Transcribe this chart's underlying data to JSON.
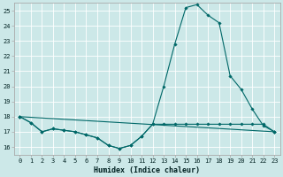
{
  "xlabel": "Humidex (Indice chaleur)",
  "xlim": [
    -0.5,
    23.5
  ],
  "ylim": [
    15.5,
    25.5
  ],
  "yticks": [
    16,
    17,
    18,
    19,
    20,
    21,
    22,
    23,
    24,
    25
  ],
  "xticks": [
    0,
    1,
    2,
    3,
    4,
    5,
    6,
    7,
    8,
    9,
    10,
    11,
    12,
    13,
    14,
    15,
    16,
    17,
    18,
    19,
    20,
    21,
    22,
    23
  ],
  "bg_color": "#cce8e8",
  "grid_color": "#ffffff",
  "line_color": "#006868",
  "line1_x": [
    0,
    1,
    2,
    3,
    4,
    5,
    6,
    7,
    8,
    9,
    10,
    11,
    12,
    13,
    14,
    15,
    16,
    17,
    18,
    19,
    20,
    21,
    22,
    23
  ],
  "line1_y": [
    18.0,
    17.6,
    17.0,
    17.2,
    17.1,
    17.0,
    16.8,
    16.6,
    16.1,
    15.9,
    16.1,
    16.7,
    17.5,
    17.5,
    17.5,
    17.5,
    17.5,
    17.5,
    17.5,
    17.5,
    17.5,
    17.5,
    17.5,
    17.0
  ],
  "line2_x": [
    0,
    1,
    2,
    3,
    4,
    5,
    6,
    7,
    8,
    9,
    10,
    11,
    12,
    13,
    14,
    15,
    16,
    17,
    18,
    19,
    20,
    21,
    22,
    23
  ],
  "line2_y": [
    18.0,
    17.6,
    17.0,
    17.2,
    17.1,
    17.0,
    16.8,
    16.6,
    16.1,
    15.9,
    16.1,
    16.7,
    17.5,
    20.0,
    22.8,
    25.2,
    25.4,
    24.7,
    24.2,
    20.7,
    19.8,
    18.5,
    17.4,
    17.0
  ],
  "line3_x": [
    0,
    23
  ],
  "line3_y": [
    18.0,
    17.0
  ],
  "tick_fontsize": 5.0,
  "xlabel_fontsize": 6.0
}
